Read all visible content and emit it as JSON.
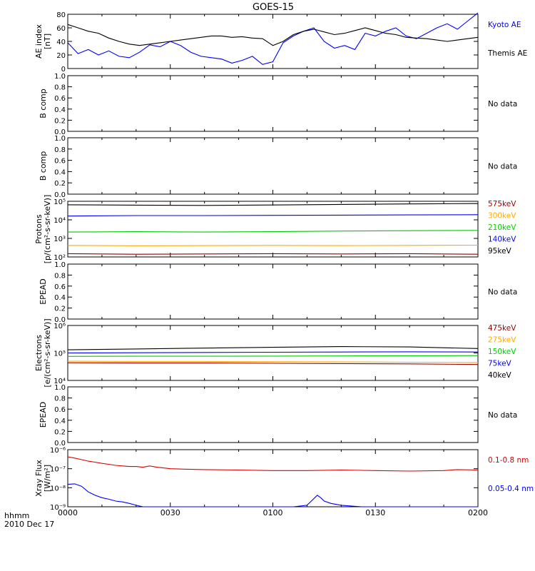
{
  "title": "GOES-15",
  "time_axis": {
    "label_line1": "hhmm",
    "label_line2": "2010 Dec 17",
    "ticks": [
      "0000",
      "0030",
      "0100",
      "0130",
      "0200"
    ]
  },
  "colors": {
    "black": "#000000",
    "blue": "#0000ff",
    "green": "#00cc00",
    "orange": "#ffaa00",
    "darkred": "#990000",
    "red": "#dd0000"
  },
  "chart_data": [
    {
      "type": "line",
      "id": "ae",
      "ylabel": [
        "AE index",
        "[nT]"
      ],
      "ylim": [
        0,
        80
      ],
      "yscale": "linear",
      "ytick_labels": [
        "0",
        "20",
        "40",
        "60",
        "80"
      ],
      "x_unit": "minutes since 0000",
      "xlim": [
        0,
        120
      ],
      "series": [
        {
          "name": "Kyoto AE",
          "color": "#0000ff",
          "x": [
            0,
            3,
            6,
            9,
            12,
            15,
            18,
            21,
            24,
            27,
            30,
            33,
            36,
            39,
            42,
            45,
            48,
            51,
            54,
            57,
            60,
            63,
            66,
            69,
            72,
            75,
            78,
            81,
            84,
            87,
            90,
            93,
            96,
            99,
            102,
            105,
            108,
            111,
            114,
            117,
            120
          ],
          "values": [
            38,
            22,
            28,
            20,
            26,
            18,
            16,
            24,
            35,
            32,
            40,
            34,
            24,
            18,
            16,
            14,
            8,
            12,
            18,
            6,
            10,
            38,
            48,
            55,
            60,
            40,
            30,
            34,
            28,
            52,
            48,
            55,
            60,
            48,
            44,
            52,
            60,
            66,
            58,
            70,
            82
          ]
        },
        {
          "name": "Themis AE",
          "color": "#000000",
          "x": [
            0,
            3,
            6,
            9,
            12,
            15,
            18,
            21,
            24,
            27,
            30,
            33,
            36,
            39,
            42,
            45,
            48,
            51,
            54,
            57,
            60,
            63,
            66,
            69,
            72,
            75,
            78,
            81,
            84,
            87,
            90,
            93,
            96,
            99,
            102,
            105,
            108,
            111,
            114,
            117,
            120
          ],
          "values": [
            65,
            60,
            55,
            52,
            45,
            40,
            36,
            34,
            36,
            38,
            40,
            42,
            44,
            46,
            48,
            48,
            46,
            47,
            45,
            44,
            34,
            40,
            50,
            55,
            58,
            54,
            50,
            52,
            56,
            60,
            56,
            52,
            50,
            46,
            45,
            44,
            42,
            40,
            42,
            44,
            46
          ]
        }
      ]
    },
    {
      "type": "line",
      "id": "bcomp1",
      "ylabel": [
        "B comp"
      ],
      "ylim": [
        0,
        1
      ],
      "yscale": "linear",
      "ytick_labels": [
        "0.0",
        "0.2",
        "0.4",
        "0.6",
        "0.8",
        "1.0"
      ],
      "status": "No data",
      "series": []
    },
    {
      "type": "line",
      "id": "bcomp2",
      "ylabel": [
        "B comp"
      ],
      "ylim": [
        0,
        1
      ],
      "yscale": "linear",
      "ytick_labels": [
        "0.0",
        "0.2",
        "0.4",
        "0.6",
        "0.8",
        "1.0"
      ],
      "status": "No data",
      "series": []
    },
    {
      "type": "line",
      "id": "protons",
      "ylabel": [
        "Protons",
        "[p/(cm²-s-sr-keV)]"
      ],
      "ylim": [
        100,
        100000
      ],
      "yscale": "log",
      "ytick_labels": [
        "10²",
        "10³",
        "10⁴",
        "10⁵"
      ],
      "xlim": [
        0,
        120
      ],
      "series": [
        {
          "name": "575keV",
          "color": "#990000",
          "x": [
            0,
            20,
            40,
            60,
            80,
            100,
            120
          ],
          "values": [
            150,
            140,
            145,
            150,
            145,
            150,
            140
          ]
        },
        {
          "name": "300keV",
          "color": "#ffaa00",
          "x": [
            0,
            20,
            40,
            60,
            80,
            100,
            120
          ],
          "values": [
            420,
            400,
            410,
            420,
            410,
            420,
            430
          ]
        },
        {
          "name": "210keV",
          "color": "#00cc00",
          "x": [
            0,
            20,
            40,
            60,
            80,
            100,
            120
          ],
          "values": [
            2200,
            2300,
            2200,
            2300,
            2500,
            2600,
            2700
          ]
        },
        {
          "name": "140keV",
          "color": "#0000ff",
          "x": [
            0,
            20,
            40,
            60,
            80,
            100,
            120
          ],
          "values": [
            16000,
            17000,
            17000,
            17500,
            18000,
            18500,
            19000
          ]
        },
        {
          "name": "95keV",
          "color": "#000000",
          "x": [
            0,
            20,
            40,
            60,
            80,
            100,
            120
          ],
          "values": [
            65000,
            62000,
            60000,
            63000,
            68000,
            72000,
            75000
          ]
        }
      ]
    },
    {
      "type": "line",
      "id": "epead1",
      "ylabel": [
        "EPEAD"
      ],
      "ylim": [
        0,
        1
      ],
      "yscale": "linear",
      "ytick_labels": [
        "0.0",
        "0.2",
        "0.4",
        "0.6",
        "0.8",
        "1.0"
      ],
      "status": "No data",
      "series": []
    },
    {
      "type": "line",
      "id": "electrons",
      "ylabel": [
        "Electrons",
        "[e/(cm²-s-sr-keV)]"
      ],
      "ylim": [
        10000,
        1000000
      ],
      "yscale": "log",
      "ytick_labels": [
        "10⁴",
        "10⁵",
        "10⁶"
      ],
      "xlim": [
        0,
        120
      ],
      "series": [
        {
          "name": "475keV",
          "color": "#990000",
          "x": [
            0,
            20,
            40,
            60,
            80,
            100,
            120
          ],
          "values": [
            44000,
            43000,
            43000,
            42000,
            41000,
            40000,
            38000
          ]
        },
        {
          "name": "275keV",
          "color": "#ffaa00",
          "x": [
            0,
            20,
            40,
            60,
            80,
            100,
            120
          ],
          "values": [
            50000,
            49000,
            49000,
            48000,
            47000,
            46000,
            45000
          ]
        },
        {
          "name": "150keV",
          "color": "#00cc00",
          "x": [
            0,
            20,
            40,
            60,
            80,
            100,
            120
          ],
          "values": [
            75000,
            76000,
            76000,
            77000,
            78000,
            79000,
            80000
          ]
        },
        {
          "name": "75keV",
          "color": "#0000ff",
          "x": [
            0,
            20,
            40,
            60,
            80,
            100,
            120
          ],
          "values": [
            100000,
            102000,
            104000,
            106000,
            108000,
            110000,
            108000
          ]
        },
        {
          "name": "40keV",
          "color": "#000000",
          "x": [
            0,
            20,
            40,
            60,
            80,
            100,
            120
          ],
          "values": [
            130000,
            140000,
            150000,
            160000,
            170000,
            165000,
            145000
          ]
        }
      ]
    },
    {
      "type": "line",
      "id": "epead2",
      "ylabel": [
        "EPEAD"
      ],
      "ylim": [
        0,
        1
      ],
      "yscale": "linear",
      "ytick_labels": [
        "0.0",
        "0.2",
        "0.4",
        "0.6",
        "0.8",
        "1.0"
      ],
      "status": "No data",
      "series": []
    },
    {
      "type": "line",
      "id": "xray",
      "ylabel": [
        "Xray Flux",
        "[W/m²]"
      ],
      "ylim": [
        1e-09,
        1e-06
      ],
      "yscale": "log",
      "ytick_labels": [
        "10⁻⁹",
        "10⁻⁸",
        "10⁻⁷",
        "10⁻⁶"
      ],
      "xlim": [
        0,
        120
      ],
      "series": [
        {
          "name": "0.1-0.8 nm",
          "color": "#dd0000",
          "x": [
            0,
            2,
            4,
            6,
            8,
            10,
            12,
            14,
            16,
            18,
            20,
            22,
            24,
            26,
            28,
            30,
            34,
            40,
            50,
            60,
            70,
            80,
            90,
            100,
            110,
            114,
            120
          ],
          "values": [
            4.2e-07,
            3.6e-07,
            3e-07,
            2.5e-07,
            2.2e-07,
            1.9e-07,
            1.7e-07,
            1.5e-07,
            1.4e-07,
            1.3e-07,
            1.3e-07,
            1.2e-07,
            1.4e-07,
            1.2e-07,
            1.1e-07,
            1e-07,
            9.5e-08,
            9e-08,
            8.5e-08,
            8e-08,
            8e-08,
            8.5e-08,
            8e-08,
            7.5e-08,
            8e-08,
            9e-08,
            8.5e-08
          ]
        },
        {
          "name": "0.05-0.4 nm",
          "color": "#0000ff",
          "x": [
            0,
            2,
            4,
            6,
            8,
            10,
            12,
            14,
            16,
            18,
            20,
            22,
            26,
            30,
            36,
            40,
            46,
            50,
            56,
            60,
            66,
            70,
            73,
            74,
            75,
            77,
            80,
            86,
            90,
            100,
            110,
            120
          ],
          "values": [
            1.5e-08,
            1.6e-08,
            1.2e-08,
            6e-09,
            4e-09,
            3e-09,
            2.5e-09,
            2e-09,
            1.8e-09,
            1.5e-09,
            1.2e-09,
            1e-09,
            1e-09,
            1e-09,
            1e-09,
            1e-09,
            1e-09,
            1e-09,
            1e-09,
            1e-09,
            1e-09,
            1.2e-09,
            4e-09,
            3e-09,
            2e-09,
            1.5e-09,
            1.2e-09,
            1e-09,
            1e-09,
            1e-09,
            1e-09,
            1e-09
          ]
        }
      ]
    }
  ]
}
